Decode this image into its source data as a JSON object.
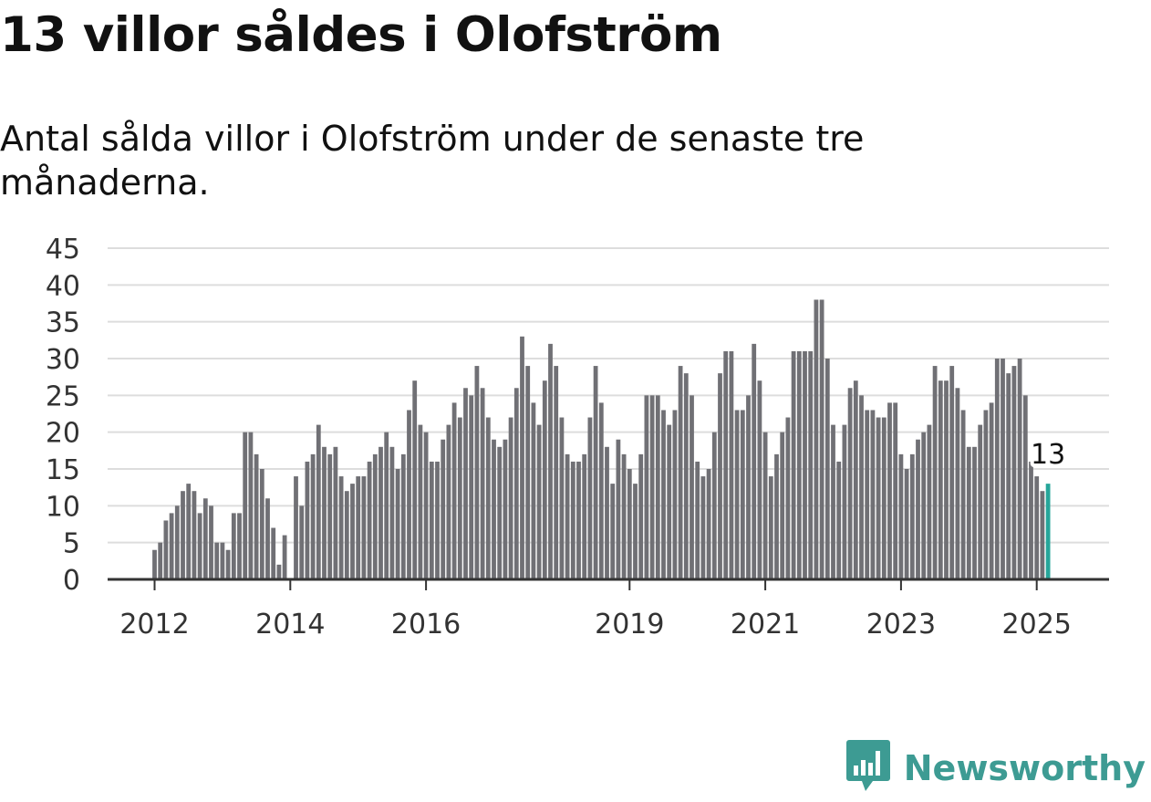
{
  "title": "13 villor såldes i Olofström",
  "subtitle": "Antal sålda villor i Olofström under de senaste tre månaderna.",
  "brand": {
    "name": "Newsworthy",
    "icon": "newsworthy-logo-icon"
  },
  "colors": {
    "bar": "#707075",
    "highlight": "#26a69a",
    "grid": "#dddddd",
    "axis": "#333333",
    "brand": "#3d9b93"
  },
  "chart_data": {
    "type": "bar",
    "title": "13 villor såldes i Olofström",
    "subtitle": "Antal sålda villor i Olofström under de senaste tre månaderna.",
    "xlabel": "",
    "ylabel": "",
    "ylim": [
      0,
      45
    ],
    "y_ticks": [
      0,
      5,
      10,
      15,
      20,
      25,
      30,
      35,
      40,
      45
    ],
    "x_ticks": [
      {
        "label": "2012",
        "date": "2012-01"
      },
      {
        "label": "2014",
        "date": "2014-01"
      },
      {
        "label": "2016",
        "date": "2016-01"
      },
      {
        "label": "2019",
        "date": "2019-01"
      },
      {
        "label": "2021",
        "date": "2021-01"
      },
      {
        "label": "2023",
        "date": "2023-01"
      },
      {
        "label": "2025",
        "date": "2025-01"
      }
    ],
    "grid": true,
    "start": "2012-01",
    "end": "2025-03",
    "values": [
      4,
      5,
      8,
      9,
      10,
      12,
      13,
      12,
      9,
      11,
      10,
      5,
      5,
      4,
      9,
      9,
      20,
      20,
      17,
      15,
      11,
      7,
      2,
      6,
      0,
      14,
      10,
      16,
      17,
      21,
      18,
      17,
      18,
      14,
      12,
      13,
      14,
      14,
      16,
      17,
      18,
      20,
      18,
      15,
      17,
      23,
      27,
      21,
      20,
      16,
      16,
      19,
      21,
      24,
      22,
      26,
      25,
      29,
      26,
      22,
      19,
      18,
      19,
      22,
      26,
      33,
      29,
      24,
      21,
      27,
      32,
      29,
      22,
      17,
      16,
      16,
      17,
      22,
      29,
      24,
      18,
      13,
      19,
      17,
      15,
      13,
      17,
      25,
      25,
      25,
      23,
      21,
      23,
      29,
      28,
      25,
      16,
      14,
      15,
      20,
      28,
      31,
      31,
      23,
      23,
      25,
      32,
      27,
      20,
      14,
      17,
      20,
      22,
      31,
      31,
      31,
      31,
      38,
      38,
      30,
      21,
      16,
      21,
      26,
      27,
      25,
      23,
      23,
      22,
      22,
      24,
      24,
      17,
      15,
      17,
      19,
      20,
      21,
      29,
      27,
      27,
      29,
      26,
      23,
      18,
      18,
      21,
      23,
      24,
      30,
      30,
      28,
      29,
      30,
      25,
      16,
      14,
      12,
      13
    ],
    "highlight": {
      "date": "2025-03",
      "value": 13,
      "label": "13"
    }
  }
}
